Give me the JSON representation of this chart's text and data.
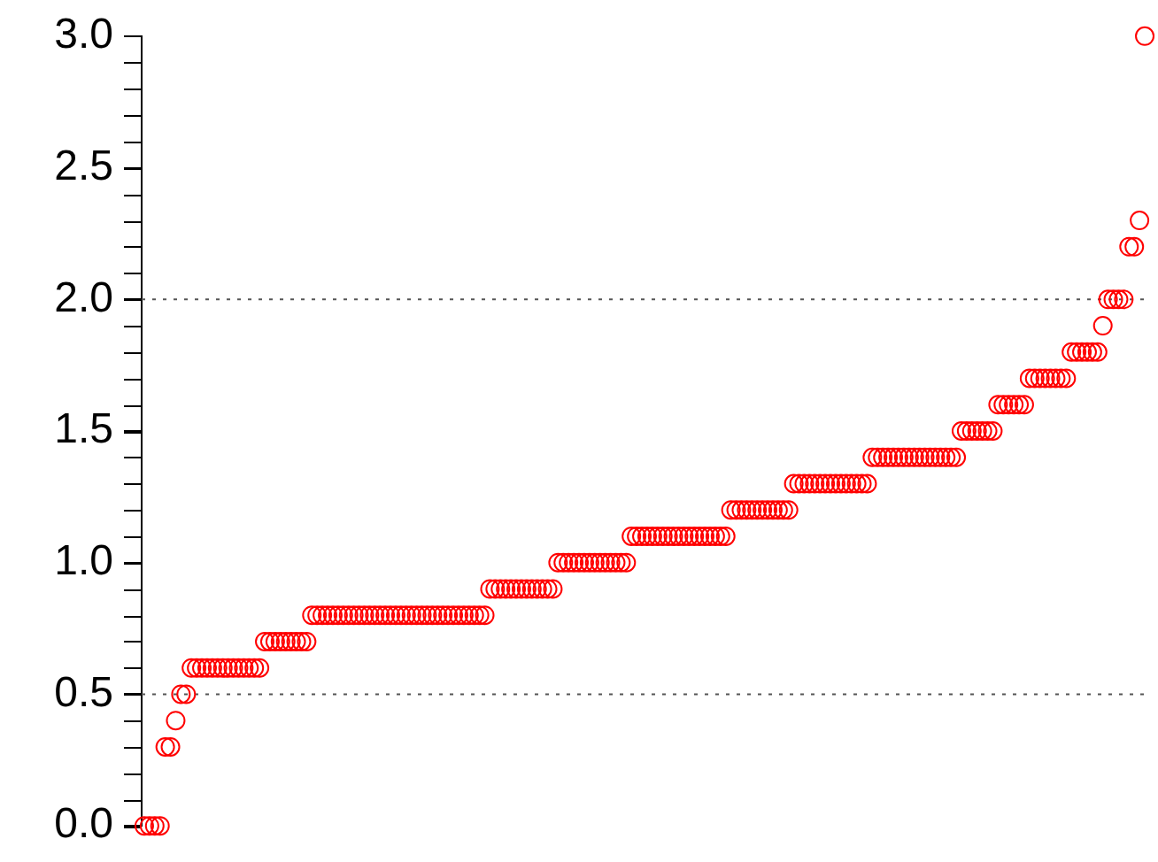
{
  "chart_data": {
    "type": "scatter",
    "marker": "circle",
    "grid": false,
    "legend": false,
    "tick_labels": "y",
    "categories": [
      null,
      null,
      null,
      null,
      null,
      null,
      null,
      null,
      null,
      null,
      null,
      null,
      null,
      null,
      null,
      null,
      null,
      null,
      null,
      null,
      null,
      null,
      null,
      null,
      null,
      null,
      null,
      null,
      null,
      null,
      null,
      null,
      null,
      null,
      null,
      null,
      null,
      null,
      null,
      null,
      null,
      null,
      null,
      null,
      null,
      null,
      null,
      null,
      null,
      null,
      null,
      null,
      null,
      null,
      null,
      null,
      null,
      null,
      null,
      null,
      null,
      null,
      null,
      null,
      null,
      null,
      null,
      null,
      null,
      null,
      null,
      null,
      null,
      null,
      null,
      null,
      null,
      null,
      null,
      null,
      null,
      null,
      null,
      null,
      null,
      null,
      null,
      null,
      null,
      null,
      null,
      null,
      null,
      null,
      null,
      null,
      null,
      null,
      null,
      null,
      null,
      null,
      null,
      null,
      null,
      null,
      null,
      null,
      null,
      null,
      null,
      null,
      null,
      null,
      null,
      null,
      null,
      null,
      null,
      null,
      null,
      null,
      null,
      null,
      null,
      null,
      null,
      null,
      null,
      null,
      null,
      null,
      null,
      null,
      null,
      null,
      null,
      null,
      null,
      null,
      null,
      null,
      null,
      null,
      null,
      null,
      null,
      null,
      null,
      null,
      null,
      null,
      null,
      null,
      null,
      null,
      null,
      null,
      null,
      null,
      null,
      null,
      null,
      null,
      null,
      null,
      null,
      null,
      null,
      null,
      null,
      null,
      null,
      null,
      null,
      null,
      null,
      null,
      null,
      null,
      null,
      null,
      null,
      null,
      null,
      null,
      null,
      null,
      null,
      null,
      null,
      null
    ],
    "series": [
      {
        "color": "#ff0000",
        "values": [
          0,
          0,
          0,
          0,
          0.3,
          0.3,
          0.4,
          0.5,
          0.5,
          0.6,
          0.6,
          0.6,
          0.6,
          0.6,
          0.6,
          0.6,
          0.6,
          0.6,
          0.6,
          0.6,
          0.6,
          0.6,
          0.6,
          0.7,
          0.7,
          0.7,
          0.7,
          0.7,
          0.7,
          0.7,
          0.7,
          0.7,
          0.8,
          0.8,
          0.8,
          0.8,
          0.8,
          0.8,
          0.8,
          0.8,
          0.8,
          0.8,
          0.8,
          0.8,
          0.8,
          0.8,
          0.8,
          0.8,
          0.8,
          0.8,
          0.8,
          0.8,
          0.8,
          0.8,
          0.8,
          0.8,
          0.8,
          0.8,
          0.8,
          0.8,
          0.8,
          0.8,
          0.8,
          0.8,
          0.8,
          0.8,
          0.9,
          0.9,
          0.9,
          0.9,
          0.9,
          0.9,
          0.9,
          0.9,
          0.9,
          0.9,
          0.9,
          0.9,
          0.9,
          1,
          1,
          1,
          1,
          1,
          1,
          1,
          1,
          1,
          1,
          1,
          1,
          1,
          1,
          1.1,
          1.1,
          1.1,
          1.1,
          1.1,
          1.1,
          1.1,
          1.1,
          1.1,
          1.1,
          1.1,
          1.1,
          1.1,
          1.1,
          1.1,
          1.1,
          1.1,
          1.1,
          1.1,
          1.2,
          1.2,
          1.2,
          1.2,
          1.2,
          1.2,
          1.2,
          1.2,
          1.2,
          1.2,
          1.2,
          1.2,
          1.3,
          1.3,
          1.3,
          1.3,
          1.3,
          1.3,
          1.3,
          1.3,
          1.3,
          1.3,
          1.3,
          1.3,
          1.3,
          1.3,
          1.3,
          1.4,
          1.4,
          1.4,
          1.4,
          1.4,
          1.4,
          1.4,
          1.4,
          1.4,
          1.4,
          1.4,
          1.4,
          1.4,
          1.4,
          1.4,
          1.4,
          1.4,
          1.5,
          1.5,
          1.5,
          1.5,
          1.5,
          1.5,
          1.5,
          1.6,
          1.6,
          1.6,
          1.6,
          1.6,
          1.6,
          1.7,
          1.7,
          1.7,
          1.7,
          1.7,
          1.7,
          1.7,
          1.7,
          1.8,
          1.8,
          1.8,
          1.8,
          1.8,
          1.8,
          1.9,
          2,
          2,
          2,
          2,
          2.2,
          2.2,
          2.3,
          3
        ]
      }
    ],
    "ylim": [
      0,
      3
    ],
    "yticks": [
      {
        "value": 0,
        "label": "0.0"
      },
      {
        "value": 0.1,
        "label": null
      },
      {
        "value": 0.2,
        "label": null
      },
      {
        "value": 0.3,
        "label": null
      },
      {
        "value": 0.4,
        "label": null
      },
      {
        "value": 0.5,
        "label": "0.5"
      },
      {
        "value": 0.6,
        "label": null
      },
      {
        "value": 0.7,
        "label": null
      },
      {
        "value": 0.8,
        "label": null
      },
      {
        "value": 0.9,
        "label": null
      },
      {
        "value": 1,
        "label": "1.0"
      },
      {
        "value": 1.1,
        "label": null
      },
      {
        "value": 1.2,
        "label": null
      },
      {
        "value": 1.3,
        "label": null
      },
      {
        "value": 1.4,
        "label": null
      },
      {
        "value": 1.5,
        "label": "1.5"
      },
      {
        "value": 1.6,
        "label": null
      },
      {
        "value": 1.7,
        "label": null
      },
      {
        "value": 1.8,
        "label": null
      },
      {
        "value": 1.9,
        "label": null
      },
      {
        "value": 2,
        "label": "2.0"
      },
      {
        "value": 2.1,
        "label": null
      },
      {
        "value": 2.2,
        "label": null
      },
      {
        "value": 2.3,
        "label": null
      },
      {
        "value": 2.4,
        "label": null
      },
      {
        "value": 2.5,
        "label": "2.5"
      },
      {
        "value": 2.6,
        "label": null
      },
      {
        "value": 2.7,
        "label": null
      },
      {
        "value": 2.8,
        "label": null
      },
      {
        "value": 2.9,
        "label": null
      },
      {
        "value": 3,
        "label": "3.0"
      }
    ],
    "ref_lines": [
      {
        "axis": "y",
        "value": 0.5,
        "color": "#555555",
        "line_style": "dotted"
      },
      {
        "axis": "y",
        "value": 2,
        "color": "#555555",
        "line_style": "dotted"
      }
    ]
  }
}
